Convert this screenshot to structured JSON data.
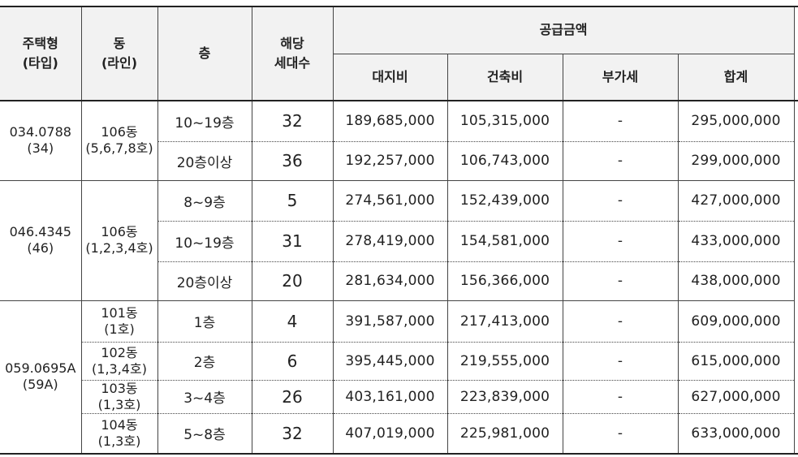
{
  "headers": {
    "type_line1": "주택형",
    "type_line2": "(타입)",
    "dong_line1": "동",
    "dong_line2": "(라인)",
    "floor": "층",
    "units_line1": "해당",
    "units_line2": "세대수",
    "price_group": "공급금액",
    "land": "대지비",
    "build": "건축비",
    "vat": "부가세",
    "total": "합계"
  },
  "groups": [
    {
      "type_line1": "034.0788",
      "type_line2": "(34)",
      "dong_line1": "106동",
      "dong_line2": "(5,6,7,8호)",
      "rows": [
        {
          "floor": "10~19층",
          "units": "32",
          "land": "189,685,000",
          "build": "105,315,000",
          "vat": "-",
          "total": "295,000,000"
        },
        {
          "floor": "20층이상",
          "units": "36",
          "land": "192,257,000",
          "build": "106,743,000",
          "vat": "-",
          "total": "299,000,000"
        }
      ]
    },
    {
      "type_line1": "046.4345",
      "type_line2": "(46)",
      "dong_line1": "106동",
      "dong_line2": "(1,2,3,4호)",
      "rows": [
        {
          "floor": "8~9층",
          "units": "5",
          "land": "274,561,000",
          "build": "152,439,000",
          "vat": "-",
          "total": "427,000,000"
        },
        {
          "floor": "10~19층",
          "units": "31",
          "land": "278,419,000",
          "build": "154,581,000",
          "vat": "-",
          "total": "433,000,000"
        },
        {
          "floor": "20층이상",
          "units": "20",
          "land": "281,634,000",
          "build": "156,366,000",
          "vat": "-",
          "total": "438,000,000"
        }
      ]
    },
    {
      "type_line1": "059.0695A",
      "type_line2": "(59A)",
      "rows": [
        {
          "dong_line1": "101동",
          "dong_line2": "(1호)",
          "floor": "1층",
          "units": "4",
          "land": "391,587,000",
          "build": "217,413,000",
          "vat": "-",
          "total": "609,000,000"
        },
        {
          "dong_line1": "102동",
          "dong_line2": "(1,3,4호)",
          "floor": "2층",
          "units": "6",
          "land": "395,445,000",
          "build": "219,555,000",
          "vat": "-",
          "total": "615,000,000"
        },
        {
          "dong_line1": "103동",
          "dong_line2": "(1,3호)",
          "floor": "3~4층",
          "units": "26",
          "land": "403,161,000",
          "build": "223,839,000",
          "vat": "-",
          "total": "627,000,000"
        },
        {
          "dong_line1": "104동",
          "dong_line2": "(1,3호)",
          "floor": "5~8층",
          "units": "32",
          "land": "407,019,000",
          "build": "225,981,000",
          "vat": "-",
          "total": "633,000,000"
        }
      ]
    }
  ]
}
